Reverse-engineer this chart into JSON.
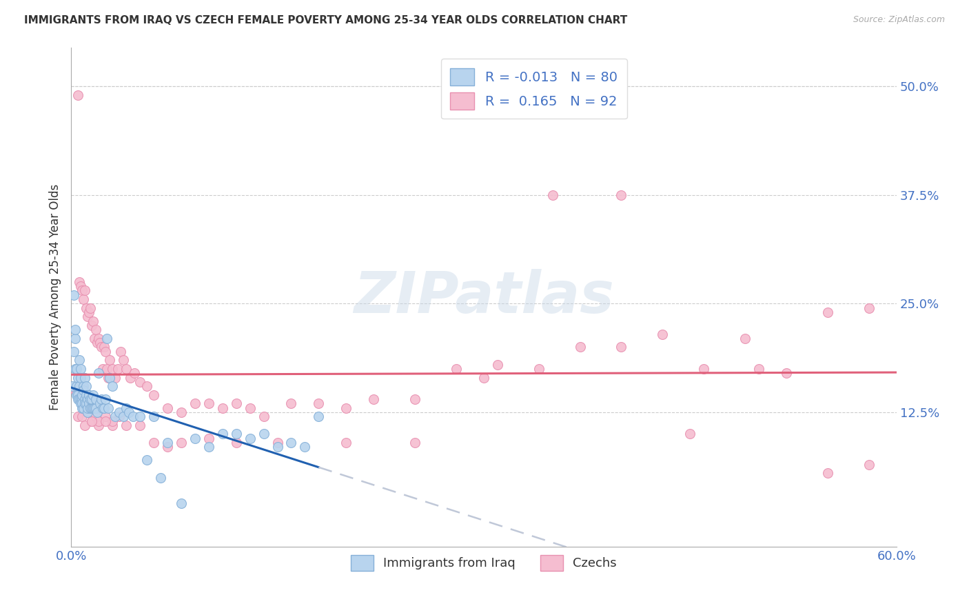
{
  "title": "IMMIGRANTS FROM IRAQ VS CZECH FEMALE POVERTY AMONG 25-34 YEAR OLDS CORRELATION CHART",
  "source": "Source: ZipAtlas.com",
  "ylabel": "Female Poverty Among 25-34 Year Olds",
  "xlim": [
    0.0,
    0.6
  ],
  "ylim": [
    -0.03,
    0.545
  ],
  "yticks": [
    0.125,
    0.25,
    0.375,
    0.5
  ],
  "ytick_labels": [
    "12.5%",
    "25.0%",
    "37.5%",
    "50.0%"
  ],
  "xticks": [
    0.0,
    0.1,
    0.2,
    0.3,
    0.4,
    0.5,
    0.6
  ],
  "xtick_labels": [
    "0.0%",
    "",
    "",
    "",
    "",
    "",
    "60.0%"
  ],
  "legend_R_values": [
    "-0.013",
    "0.165"
  ],
  "legend_N_values": [
    "80",
    "92"
  ],
  "iraq_color": "#b8d4ee",
  "czech_color": "#f5bdd0",
  "iraq_edge": "#85b0d8",
  "czech_edge": "#e890b0",
  "trendline_iraq_color": "#2060b0",
  "trendline_czech_color": "#e0607a",
  "trendline_dashed_color": "#c0c8d8",
  "background_color": "#ffffff",
  "iraq_x": [
    0.001,
    0.002,
    0.002,
    0.003,
    0.003,
    0.003,
    0.004,
    0.004,
    0.004,
    0.005,
    0.005,
    0.005,
    0.006,
    0.006,
    0.006,
    0.007,
    0.007,
    0.007,
    0.007,
    0.008,
    0.008,
    0.008,
    0.008,
    0.009,
    0.009,
    0.009,
    0.01,
    0.01,
    0.01,
    0.011,
    0.011,
    0.011,
    0.012,
    0.012,
    0.012,
    0.013,
    0.013,
    0.013,
    0.014,
    0.014,
    0.015,
    0.015,
    0.016,
    0.016,
    0.017,
    0.018,
    0.018,
    0.019,
    0.02,
    0.021,
    0.022,
    0.023,
    0.024,
    0.025,
    0.026,
    0.027,
    0.028,
    0.03,
    0.032,
    0.035,
    0.038,
    0.04,
    0.042,
    0.045,
    0.05,
    0.055,
    0.06,
    0.065,
    0.07,
    0.08,
    0.09,
    0.1,
    0.11,
    0.12,
    0.13,
    0.14,
    0.15,
    0.16,
    0.17,
    0.18
  ],
  "iraq_y": [
    0.155,
    0.26,
    0.195,
    0.21,
    0.22,
    0.175,
    0.175,
    0.155,
    0.145,
    0.145,
    0.165,
    0.14,
    0.185,
    0.14,
    0.155,
    0.175,
    0.165,
    0.14,
    0.135,
    0.14,
    0.13,
    0.145,
    0.135,
    0.155,
    0.15,
    0.13,
    0.165,
    0.14,
    0.135,
    0.155,
    0.145,
    0.135,
    0.14,
    0.125,
    0.13,
    0.145,
    0.145,
    0.135,
    0.13,
    0.14,
    0.13,
    0.14,
    0.145,
    0.13,
    0.13,
    0.13,
    0.14,
    0.125,
    0.17,
    0.135,
    0.14,
    0.13,
    0.13,
    0.14,
    0.21,
    0.13,
    0.165,
    0.155,
    0.12,
    0.125,
    0.12,
    0.13,
    0.125,
    0.12,
    0.12,
    0.07,
    0.12,
    0.05,
    0.09,
    0.02,
    0.095,
    0.085,
    0.1,
    0.1,
    0.095,
    0.1,
    0.085,
    0.09,
    0.085,
    0.12
  ],
  "czech_x": [
    0.003,
    0.004,
    0.005,
    0.006,
    0.007,
    0.008,
    0.009,
    0.01,
    0.011,
    0.012,
    0.013,
    0.014,
    0.015,
    0.016,
    0.017,
    0.018,
    0.019,
    0.02,
    0.021,
    0.022,
    0.023,
    0.024,
    0.025,
    0.026,
    0.027,
    0.028,
    0.03,
    0.032,
    0.034,
    0.036,
    0.038,
    0.04,
    0.043,
    0.046,
    0.05,
    0.055,
    0.06,
    0.07,
    0.08,
    0.09,
    0.1,
    0.11,
    0.12,
    0.13,
    0.14,
    0.16,
    0.18,
    0.2,
    0.22,
    0.25,
    0.28,
    0.31,
    0.34,
    0.37,
    0.4,
    0.43,
    0.46,
    0.49,
    0.52,
    0.55,
    0.005,
    0.008,
    0.01,
    0.012,
    0.015,
    0.018,
    0.02,
    0.025,
    0.03,
    0.035,
    0.04,
    0.05,
    0.06,
    0.07,
    0.08,
    0.1,
    0.12,
    0.15,
    0.2,
    0.25,
    0.3,
    0.35,
    0.4,
    0.45,
    0.5,
    0.55,
    0.58,
    0.02,
    0.03,
    0.015,
    0.025,
    0.58
  ],
  "czech_y": [
    0.15,
    0.15,
    0.49,
    0.275,
    0.27,
    0.265,
    0.255,
    0.265,
    0.245,
    0.235,
    0.24,
    0.245,
    0.225,
    0.23,
    0.21,
    0.22,
    0.205,
    0.21,
    0.205,
    0.2,
    0.175,
    0.2,
    0.195,
    0.175,
    0.165,
    0.185,
    0.175,
    0.165,
    0.175,
    0.195,
    0.185,
    0.175,
    0.165,
    0.17,
    0.16,
    0.155,
    0.145,
    0.13,
    0.125,
    0.135,
    0.135,
    0.13,
    0.135,
    0.13,
    0.12,
    0.135,
    0.135,
    0.13,
    0.14,
    0.14,
    0.175,
    0.18,
    0.175,
    0.2,
    0.2,
    0.215,
    0.175,
    0.21,
    0.17,
    0.24,
    0.12,
    0.12,
    0.11,
    0.125,
    0.115,
    0.12,
    0.11,
    0.12,
    0.11,
    0.12,
    0.11,
    0.11,
    0.09,
    0.085,
    0.09,
    0.095,
    0.09,
    0.09,
    0.09,
    0.09,
    0.165,
    0.375,
    0.375,
    0.1,
    0.175,
    0.055,
    0.065,
    0.115,
    0.115,
    0.115,
    0.115,
    0.245
  ]
}
